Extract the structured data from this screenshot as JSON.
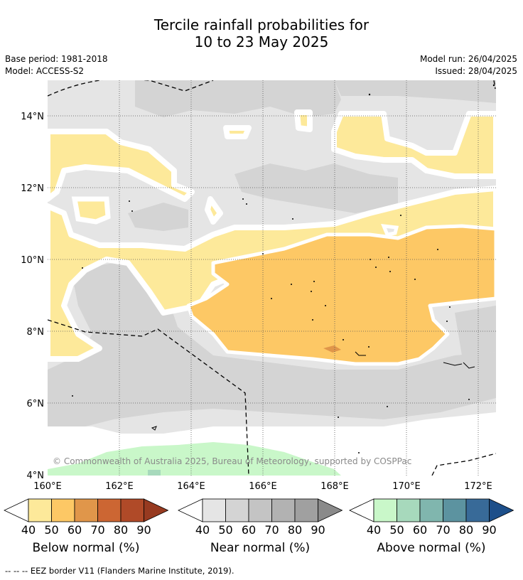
{
  "title": {
    "line1": "Tercile rainfall probabilities for",
    "line2": "10 to 23 May 2025"
  },
  "meta": {
    "base_period": "Base period: 1981-2018",
    "model": "Model: ACCESS-S2",
    "model_run": "Model run: 26/04/2025",
    "issued": "Issued: 28/04/2025"
  },
  "map": {
    "lat_ticks": [
      "14°N",
      "12°N",
      "10°N",
      "8°N",
      "6°N",
      "4°N"
    ],
    "lon_ticks": [
      "160°E",
      "162°E",
      "164°E",
      "166°E",
      "168°E",
      "170°E",
      "172°E"
    ],
    "copyright": "© Commonwealth of Australia 2025, Bureau of Meteorology, supported by COSPPac",
    "extent": {
      "lon_min": 160,
      "lon_max": 172.5,
      "lat_min": 4,
      "lat_max": 15
    }
  },
  "colorbars": [
    {
      "label": "Below normal (%)",
      "ticks": [
        "40",
        "50",
        "60",
        "70",
        "80",
        "90"
      ],
      "colors": [
        "#fde99a",
        "#fdc865",
        "#e0964a",
        "#cc6633",
        "#b04a28",
        "#973a20"
      ]
    },
    {
      "label": "Near normal (%)",
      "ticks": [
        "40",
        "50",
        "60",
        "70",
        "80",
        "90"
      ],
      "colors": [
        "#e5e5e5",
        "#d4d4d4",
        "#c4c4c4",
        "#b2b2b2",
        "#a0a0a0",
        "#8a8a8a"
      ]
    },
    {
      "label": "Above normal (%)",
      "ticks": [
        "40",
        "50",
        "60",
        "70",
        "80",
        "90"
      ],
      "colors": [
        "#c9f7c9",
        "#a7d9bc",
        "#80b6ae",
        "#5c93a0",
        "#386a98",
        "#1d4f8a"
      ]
    }
  ],
  "footnote": "--  --  -- EEZ border V11 (Flanders Marine Institute, 2019)."
}
